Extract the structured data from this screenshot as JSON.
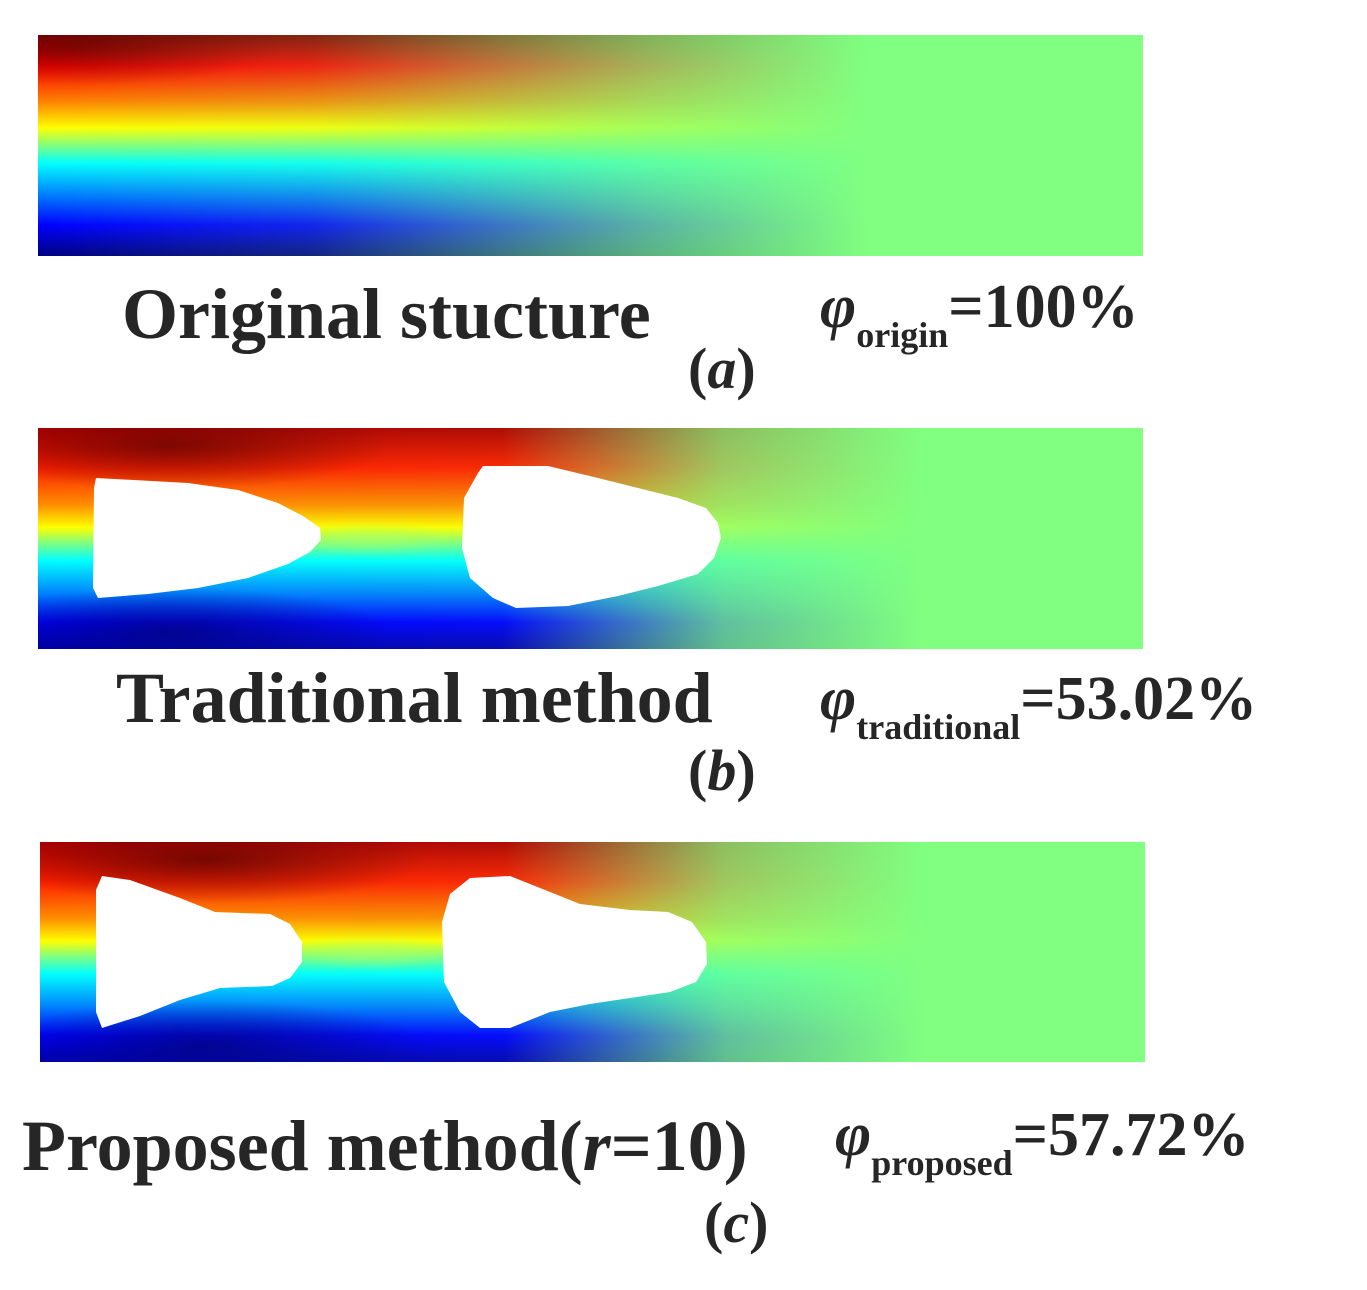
{
  "panels": [
    {
      "title": "Original stucture",
      "phi_symbol": "φ",
      "phi_subscript": "origin",
      "phi_value": "=100%",
      "tag_open": "(",
      "tag_letter": "a",
      "tag_close": ")"
    },
    {
      "title": "Traditional method",
      "phi_symbol": "φ",
      "phi_subscript": "traditional",
      "phi_value": "=53.02%",
      "tag_open": "(",
      "tag_letter": "b",
      "tag_close": ")"
    },
    {
      "title_prefix": "Proposed method(",
      "title_var": "r",
      "title_suffix": "=10)",
      "phi_symbol": "φ",
      "phi_subscript": "proposed",
      "phi_value": "=57.72%",
      "tag_open": "(",
      "tag_letter": "c",
      "tag_close": ")"
    }
  ],
  "colormap": "jet",
  "colors": {
    "dark_red": "#7f0000",
    "red": "#ff0000",
    "orange": "#ff8000",
    "yellow": "#ffff00",
    "green": "#80ff80",
    "cyan": "#00ffff",
    "blue": "#0000ff",
    "dark_blue": "#00007f",
    "text": "#262626"
  }
}
